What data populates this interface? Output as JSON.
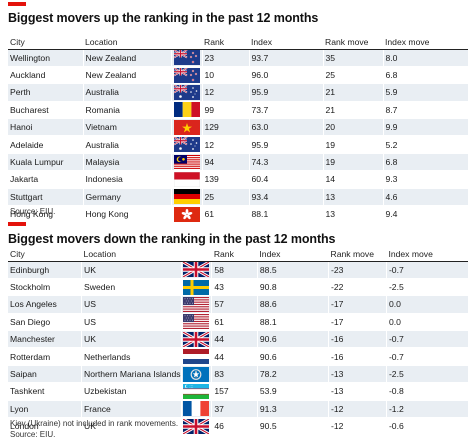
{
  "up": {
    "title": "Biggest movers up the ranking in the past 12 months",
    "headers": [
      "City",
      "Location",
      "Rank",
      "Index",
      "Rank move",
      "Index move"
    ],
    "rows": [
      {
        "city": "Wellington",
        "location": "New Zealand",
        "flag": "nz-flag-icon",
        "rank": "23",
        "index": "93.7",
        "rank_move": "35",
        "index_move": "8.0"
      },
      {
        "city": "Auckland",
        "location": "New Zealand",
        "flag": "nz-flag-icon",
        "rank": "10",
        "index": "96.0",
        "rank_move": "25",
        "index_move": "6.8"
      },
      {
        "city": "Perth",
        "location": "Australia",
        "flag": "au-flag-icon",
        "rank": "12",
        "index": "95.9",
        "rank_move": "21",
        "index_move": "5.9"
      },
      {
        "city": "Bucharest",
        "location": "Romania",
        "flag": "ro-flag-icon",
        "rank": "99",
        "index": "73.7",
        "rank_move": "21",
        "index_move": "8.7"
      },
      {
        "city": "Hanoi",
        "location": "Vietnam",
        "flag": "vn-flag-icon",
        "rank": "129",
        "index": "63.0",
        "rank_move": "20",
        "index_move": "9.9"
      },
      {
        "city": "Adelaide",
        "location": "Australia",
        "flag": "au-flag-icon",
        "rank": "12",
        "index": "95.9",
        "rank_move": "19",
        "index_move": "5.2"
      },
      {
        "city": "Kuala Lumpur",
        "location": "Malaysia",
        "flag": "my-flag-icon",
        "rank": "94",
        "index": "74.3",
        "rank_move": "19",
        "index_move": "6.8"
      },
      {
        "city": "Jakarta",
        "location": "Indonesia",
        "flag": "id-flag-icon",
        "rank": "139",
        "index": "60.4",
        "rank_move": "14",
        "index_move": "9.3"
      },
      {
        "city": "Stuttgart",
        "location": "Germany",
        "flag": "de-flag-icon",
        "rank": "25",
        "index": "93.4",
        "rank_move": "13",
        "index_move": "4.6"
      },
      {
        "city": "Hong Kong",
        "location": "Hong Kong",
        "flag": "hk-flag-icon",
        "rank": "61",
        "index": "88.1",
        "rank_move": "13",
        "index_move": "9.4"
      }
    ],
    "source": "Source: EIU."
  },
  "down": {
    "title": "Biggest movers down the ranking in the past 12 months",
    "headers": [
      "City",
      "Location",
      "Rank",
      "Index",
      "Rank move",
      "Index move"
    ],
    "rows": [
      {
        "city": "Edinburgh",
        "location": "UK",
        "flag": "uk-flag-icon",
        "rank": "58",
        "index": "88.5",
        "rank_move": "-23",
        "index_move": "-0.7"
      },
      {
        "city": "Stockholm",
        "location": "Sweden",
        "flag": "se-flag-icon",
        "rank": "43",
        "index": "90.8",
        "rank_move": "-22",
        "index_move": "-2.5"
      },
      {
        "city": "Los Angeles",
        "location": "US",
        "flag": "us-flag-icon",
        "rank": "57",
        "index": "88.6",
        "rank_move": "-17",
        "index_move": "0.0"
      },
      {
        "city": "San Diego",
        "location": "US",
        "flag": "us-flag-icon",
        "rank": "61",
        "index": "88.1",
        "rank_move": "-17",
        "index_move": "0.0"
      },
      {
        "city": "Manchester",
        "location": "UK",
        "flag": "uk-flag-icon",
        "rank": "44",
        "index": "90.6",
        "rank_move": "-16",
        "index_move": "-0.7"
      },
      {
        "city": "Rotterdam",
        "location": "Netherlands",
        "flag": "nl-flag-icon",
        "rank": "44",
        "index": "90.6",
        "rank_move": "-16",
        "index_move": "-0.7"
      },
      {
        "city": "Saipan",
        "location": "Northern Mariana Islands",
        "flag": "mp-flag-icon",
        "rank": "83",
        "index": "78.2",
        "rank_move": "-13",
        "index_move": "-2.5"
      },
      {
        "city": "Tashkent",
        "location": "Uzbekistan",
        "flag": "uz-flag-icon",
        "rank": "157",
        "index": "53.9",
        "rank_move": "-13",
        "index_move": "-0.8"
      },
      {
        "city": "Lyon",
        "location": "France",
        "flag": "fr-flag-icon",
        "rank": "37",
        "index": "91.3",
        "rank_move": "-12",
        "index_move": "-1.2"
      },
      {
        "city": "London",
        "location": "UK",
        "flag": "uk-flag-icon",
        "rank": "46",
        "index": "90.5",
        "rank_move": "-12",
        "index_move": "-0.6"
      }
    ],
    "footnote": "Kiev (Ukraine) not included in rank movements.",
    "source": "Source: EIU."
  },
  "colors": {
    "accent": "#e3120b",
    "row_shade": "#e9eef3"
  }
}
